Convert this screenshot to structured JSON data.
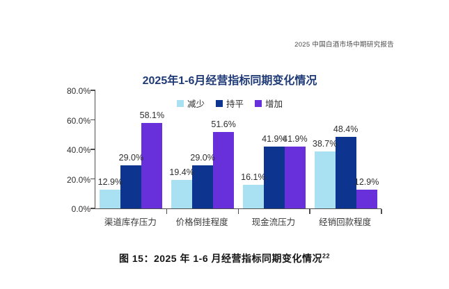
{
  "header": {
    "report_title": "2025 中国白酒市场中期研究报告"
  },
  "chart_data": {
    "type": "bar",
    "title": "2025年1-6月经营指标同期变化情况",
    "categories": [
      "渠道库存压力",
      "价格倒挂程度",
      "现金流压力",
      "经销回款程度"
    ],
    "series": [
      {
        "name": "减少",
        "color": "#A9E0F2",
        "values": [
          12.9,
          19.4,
          16.1,
          38.7
        ]
      },
      {
        "name": "持平",
        "color": "#0D3590",
        "values": [
          29.0,
          29.0,
          41.9,
          48.4
        ]
      },
      {
        "name": "增加",
        "color": "#6730DB",
        "values": [
          58.1,
          51.6,
          41.9,
          12.9
        ]
      }
    ],
    "xlabel": "",
    "ylabel": "",
    "ylim": [
      0,
      80
    ],
    "y_ticks": [
      {
        "value": 0,
        "label": "0.0%"
      },
      {
        "value": 20,
        "label": "20.0%"
      },
      {
        "value": 40,
        "label": "40.0%"
      },
      {
        "value": 60,
        "label": "60.0%"
      },
      {
        "value": 80,
        "label": "80.0%"
      }
    ],
    "value_suffix": "%",
    "grid": false,
    "legend_position": "top-center"
  },
  "caption": {
    "text": "图 15：2025 年 1-6 月经营指标同期变化情况",
    "superscript": "22"
  },
  "theme": {
    "title_color": "#1e3a76",
    "axis_color": "#4d4d4d",
    "label_color": "#2e2e2e"
  }
}
